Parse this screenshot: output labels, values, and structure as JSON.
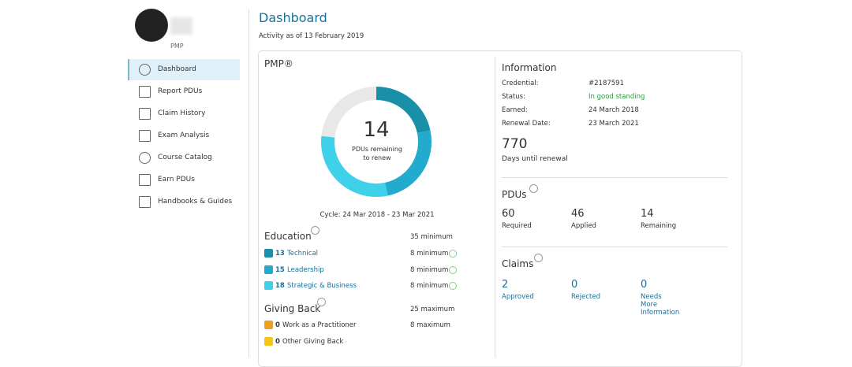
{
  "sidebar": {
    "profile": {
      "credential": "PMP"
    },
    "menu": [
      "Dashboard",
      "Report PDUs",
      "Claim History",
      "Exam Analysis",
      "Course Catalog",
      "Earn PDUs",
      "Handbooks & Guides"
    ]
  },
  "header": {
    "title": "Dashboard",
    "subtitle": "Activity as of 13 February 2019"
  },
  "certification": {
    "title": "PMP®",
    "donut": {
      "value": 14,
      "caption": "PDUs remaining to renew",
      "color": "#e8e8e8"
    },
    "cycle": "Cycle: 24 Mar 2018 - 23 Mar 2021",
    "education": {
      "title": "Education",
      "limit": "35 minimum",
      "items": [
        {
          "value": 13,
          "label": "Technical",
          "limit": "8 minimum",
          "color": "#1a8fa8"
        },
        {
          "value": 15,
          "label": "Leadership",
          "limit": "8 minimum",
          "color": "#22abcd"
        },
        {
          "value": 18,
          "label": "Strategic & Business",
          "limit": "8 minimum",
          "color": "#3fd1ea"
        }
      ]
    },
    "giving_back": {
      "title": "Giving Back",
      "limit": "25 maximum",
      "items": [
        {
          "value": 0,
          "label": "Work as a Practitioner",
          "limit": "8 maximum",
          "color": "#f0a020"
        },
        {
          "value": 0,
          "label": "Other Giving Back",
          "color": "#f5c518"
        }
      ]
    }
  },
  "information": {
    "title": "Information",
    "rows": [
      [
        "Credential:",
        "#2187591"
      ],
      [
        "Status:",
        "In good standing"
      ],
      [
        "Earned:",
        "24 March 2018"
      ],
      [
        "Renewal Date:",
        "23 March 2021"
      ]
    ],
    "days": {
      "value": 770,
      "label": "Days until renewal"
    }
  },
  "pdus": {
    "title": "PDUs",
    "items": [
      {
        "value": 60,
        "label": "Required"
      },
      {
        "value": 46,
        "label": "Applied"
      },
      {
        "value": 14,
        "label": "Remaining"
      }
    ]
  },
  "claims": {
    "title": "Claims",
    "items": [
      {
        "value": 2,
        "label": "Approved"
      },
      {
        "value": 0,
        "label": "Rejected"
      },
      {
        "value": 0,
        "label": "Needs More Information"
      }
    ]
  }
}
